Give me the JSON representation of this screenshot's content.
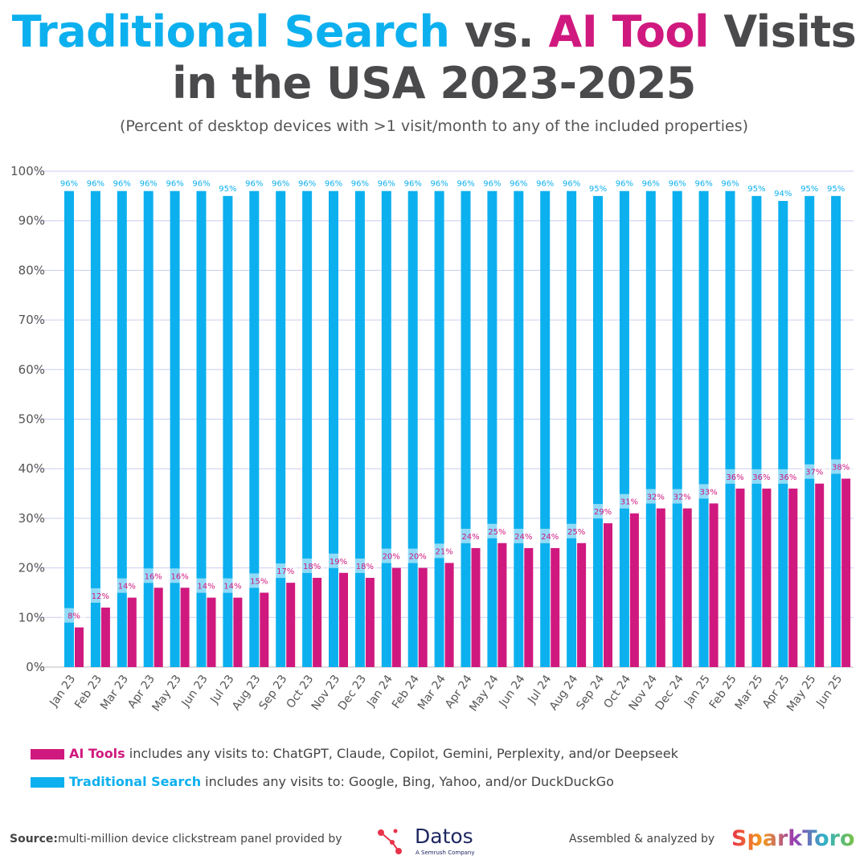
{
  "title": {
    "part1": "Traditional Search",
    "part2": " vs. ",
    "part3": "AI Tool",
    "part4": " Visits",
    "line2": "in the USA 2023-2025"
  },
  "subtitle": "(Percent of desktop devices with >1 visit/month to any of the included properties)",
  "colors": {
    "traditional": "#0db0ee",
    "ai": "#d0197f",
    "grid": "#c9cdf0"
  },
  "chart_data": {
    "type": "bar",
    "ylim": [
      0,
      100
    ],
    "yticks": [
      "0%",
      "10%",
      "20%",
      "30%",
      "40%",
      "50%",
      "60%",
      "70%",
      "80%",
      "90%",
      "100%"
    ],
    "grid": true,
    "legend_placement": "bottom",
    "categories": [
      "Jan 23",
      "Feb 23",
      "Mar 23",
      "Apr 23",
      "May 23",
      "Jun 23",
      "Jul 23",
      "Aug 23",
      "Sep 23",
      "Oct 23",
      "Nov 23",
      "Dec 23",
      "Jan 24",
      "Feb 24",
      "Mar 24",
      "Apr 24",
      "May 24",
      "Jun 24",
      "Jul 24",
      "Aug 24",
      "Sep 24",
      "Oct 24",
      "Nov 24",
      "Dec 24",
      "Jan 25",
      "Feb 25",
      "Mar 25",
      "Apr 25",
      "May 25",
      "Jun 25"
    ],
    "series": [
      {
        "name": "Traditional Search",
        "values": [
          96,
          96,
          96,
          96,
          96,
          96,
          95,
          96,
          96,
          96,
          96,
          96,
          96,
          96,
          96,
          96,
          96,
          96,
          96,
          96,
          95,
          96,
          96,
          96,
          96,
          96,
          95,
          94,
          95,
          95
        ]
      },
      {
        "name": "AI Tools",
        "values": [
          8,
          12,
          14,
          16,
          16,
          14,
          14,
          15,
          17,
          18,
          19,
          18,
          20,
          20,
          21,
          24,
          25,
          24,
          24,
          25,
          29,
          31,
          32,
          32,
          33,
          36,
          36,
          36,
          37,
          38
        ]
      }
    ]
  },
  "legend": {
    "ai_name": "AI Tools",
    "ai_desc": " includes any visits to: ChatGPT, Claude, Copilot, Gemini, Perplexity, and/or Deepseek",
    "trad_name": "Traditional Search",
    "trad_desc": " includes any visits to: Google, Bing, Yahoo, and/or DuckDuckGo"
  },
  "footer": {
    "source_label": "Source:",
    "source_text": "multi-million device clickstream panel provided by",
    "datos": "Datos",
    "datos_tag": "A Semrush Company",
    "assembled": "Assembled & analyzed by",
    "sparktoro": "SparkToro"
  }
}
